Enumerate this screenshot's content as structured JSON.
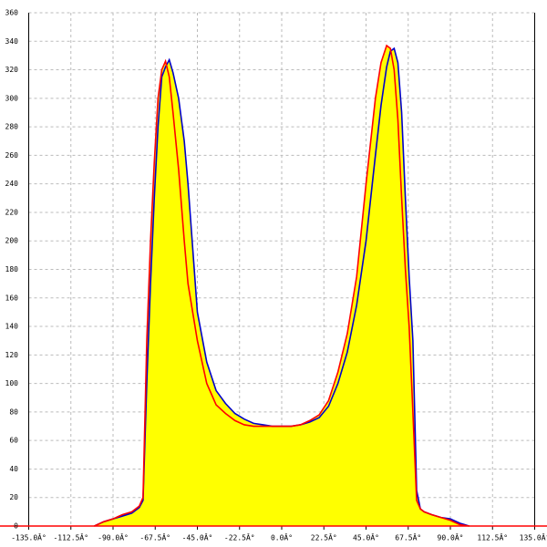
{
  "chart_data": {
    "type": "area",
    "x": [
      -100,
      -95,
      -90,
      -85,
      -80,
      -76,
      -74,
      -72,
      -70,
      -68,
      -66,
      -64,
      -62,
      -60,
      -58,
      -55,
      -52,
      -50,
      -45,
      -40,
      -35,
      -30,
      -25,
      -20,
      -15,
      -10,
      -5,
      0,
      5,
      10,
      15,
      20,
      25,
      30,
      35,
      40,
      45,
      50,
      53,
      56,
      58,
      60,
      62,
      64,
      66,
      68,
      70,
      72,
      74,
      76,
      80,
      85,
      90,
      95,
      100
    ],
    "series": [
      {
        "color": "#0000cc",
        "fill": "#ffff00",
        "values": [
          0,
          3,
          5,
          7,
          9,
          13,
          18,
          100,
          170,
          230,
          280,
          315,
          322,
          327,
          318,
          300,
          270,
          240,
          150,
          115,
          95,
          86,
          79,
          75,
          72,
          71,
          70,
          70,
          70,
          71,
          73,
          76,
          84,
          100,
          122,
          155,
          200,
          260,
          295,
          322,
          333,
          335,
          325,
          290,
          230,
          175,
          130,
          25,
          12,
          10,
          8,
          6,
          5,
          2,
          0
        ]
      },
      {
        "color": "#ff0000",
        "fill": "#ffff00",
        "values": [
          0,
          3,
          5,
          8,
          10,
          14,
          20,
          130,
          200,
          255,
          300,
          320,
          326,
          315,
          290,
          250,
          200,
          170,
          130,
          100,
          85,
          79,
          74,
          71,
          70,
          70,
          70,
          70,
          70,
          71,
          74,
          78,
          88,
          108,
          135,
          175,
          240,
          300,
          325,
          337,
          335,
          320,
          285,
          230,
          180,
          140,
          80,
          18,
          12,
          10,
          8,
          6,
          4,
          1,
          0
        ]
      }
    ],
    "xlim": [
      -135,
      135
    ],
    "xticks": [
      {
        "value": -135,
        "label": "-135.0Â°"
      },
      {
        "value": -112.5,
        "label": "-112.5Â°"
      },
      {
        "value": -90,
        "label": "-90.0Â°"
      },
      {
        "value": -67.5,
        "label": "-67.5Â°"
      },
      {
        "value": -45,
        "label": "-45.0Â°"
      },
      {
        "value": -22.5,
        "label": "-22.5Â°"
      },
      {
        "value": 0,
        "label": "0.0Â°"
      },
      {
        "value": 22.5,
        "label": "22.5Â°"
      },
      {
        "value": 45,
        "label": "45.0Â°"
      },
      {
        "value": 67.5,
        "label": "67.5Â°"
      },
      {
        "value": 90,
        "label": "90.0Â°"
      },
      {
        "value": 112.5,
        "label": "112.5Â°"
      },
      {
        "value": 135,
        "label": "135.0Â°"
      }
    ],
    "ylim": [
      0,
      360
    ],
    "yticks": [
      0,
      20,
      40,
      60,
      80,
      100,
      120,
      140,
      160,
      180,
      200,
      220,
      240,
      260,
      280,
      300,
      320,
      340,
      360
    ],
    "grid": true
  }
}
